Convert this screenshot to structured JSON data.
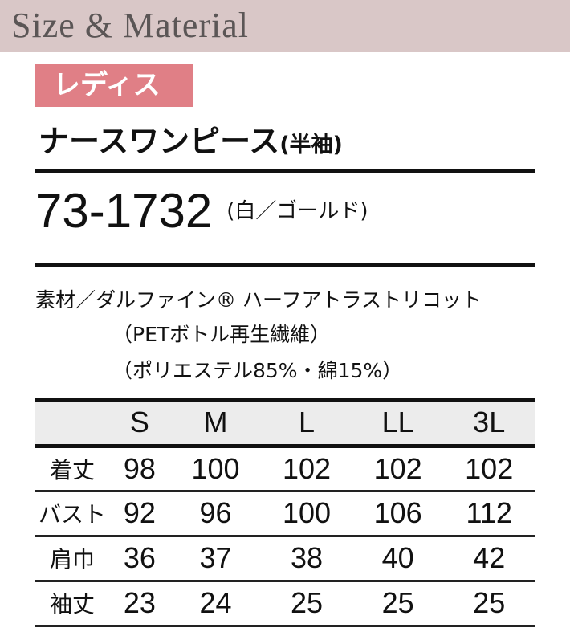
{
  "header": {
    "title": "Size & Material"
  },
  "badge": "レディス",
  "product": {
    "name": "ナースワンピース",
    "sleeve": "(半袖)",
    "code": "73-1732",
    "color": "(白／ゴールド)"
  },
  "material": {
    "line1": "素材／ダルファイン® ハーフアトラストリコット",
    "line2": "（PETボトル再生繊維）",
    "line3": "（ポリエステル85%・綿15%）"
  },
  "table": {
    "headers": [
      "",
      "S",
      "M",
      "L",
      "LL",
      "3L"
    ],
    "rows": [
      {
        "label": "着丈",
        "values": [
          "98",
          "100",
          "102",
          "102",
          "102"
        ]
      },
      {
        "label": "バスト",
        "values": [
          "92",
          "96",
          "100",
          "106",
          "112"
        ]
      },
      {
        "label": "肩巾",
        "values": [
          "36",
          "37",
          "38",
          "40",
          "42"
        ]
      },
      {
        "label": "袖丈",
        "values": [
          "23",
          "24",
          "25",
          "25",
          "25"
        ]
      }
    ]
  },
  "colors": {
    "header_bg": "#d9c7c7",
    "badge_bg": "#e07f86",
    "table_header_bg": "#ececec"
  }
}
